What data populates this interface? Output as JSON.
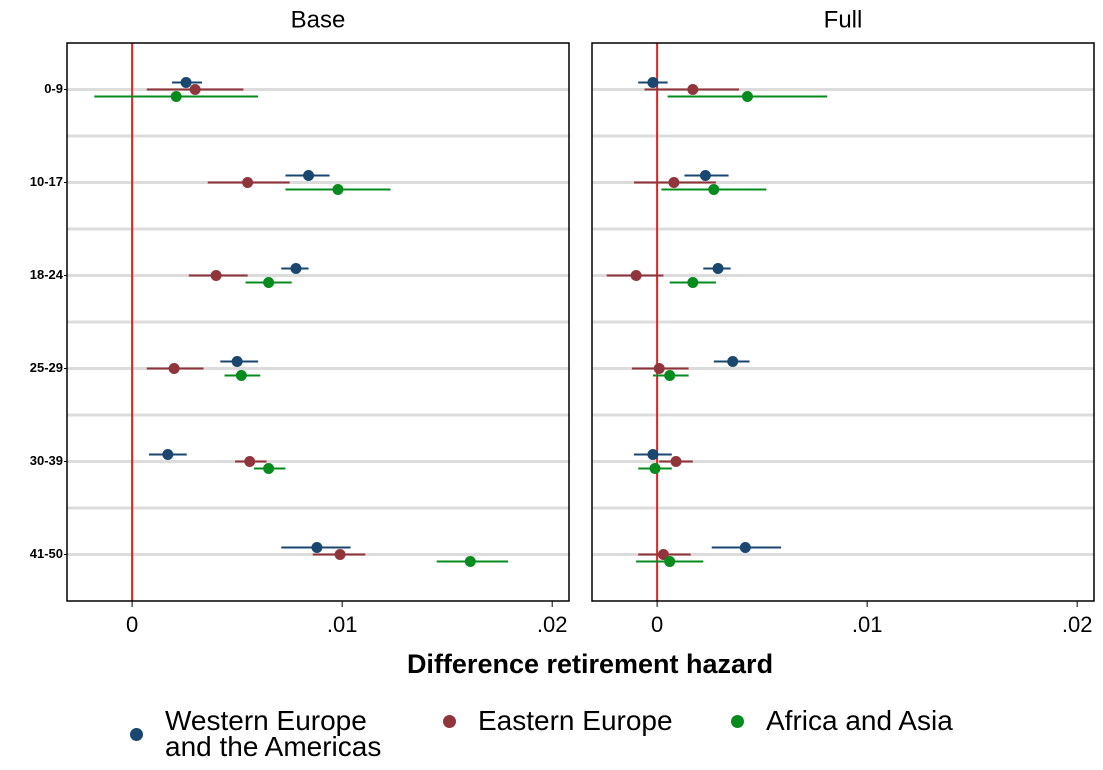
{
  "chart_data": [
    {
      "type": "coefplot",
      "title": "Base",
      "categories": [
        "0-9",
        "10-17",
        "18-24",
        "25-29",
        "30-39",
        "41-50"
      ],
      "xlabel": "Difference retirement hazard",
      "xlim": [
        -0.0031,
        0.0208
      ],
      "xticks": [
        0,
        {
          "value": 0.01,
          "label": ".01"
        },
        {
          "value": 0.02,
          "label": ".02"
        }
      ],
      "refline": 0,
      "refline_color": "#e8201f",
      "grid": true,
      "series": [
        {
          "name": "Western Europe and the Americas",
          "color": "#1a476f",
          "values": [
            0.00257,
            0.0084,
            0.0078,
            0.005,
            0.0017,
            0.0088
          ],
          "lower": [
            0.0019,
            0.0073,
            0.0071,
            0.0042,
            0.0008,
            0.0071
          ],
          "upper": [
            0.00333,
            0.0094,
            0.0084,
            0.006,
            0.0026,
            0.0104
          ]
        },
        {
          "name": "Eastern Europe",
          "color": "#90353b",
          "values": [
            0.003,
            0.0055,
            0.004,
            0.002,
            0.0056,
            0.0099
          ],
          "lower": [
            0.0007,
            0.0036,
            0.0027,
            0.0007,
            0.0049,
            0.0086
          ],
          "upper": [
            0.0053,
            0.0075,
            0.0055,
            0.0034,
            0.0064,
            0.0111
          ]
        },
        {
          "name": "Africa and Asia",
          "color": "#058b1e",
          "values": [
            0.0021,
            0.0098,
            0.0065,
            0.0052,
            0.0065,
            0.0161
          ],
          "lower": [
            -0.0018,
            0.0073,
            0.0054,
            0.0044,
            0.0058,
            0.0145
          ],
          "upper": [
            0.006,
            0.0123,
            0.0076,
            0.0061,
            0.0073,
            0.0179
          ]
        }
      ]
    },
    {
      "type": "coefplot",
      "title": "Full",
      "xlim": [
        -0.0031,
        0.0208
      ],
      "xticks": [
        0,
        {
          "value": 0.01,
          "label": ".01"
        },
        {
          "value": 0.02,
          "label": ".02"
        }
      ],
      "refline": 0,
      "refline_color": "#e8201f",
      "grid": true,
      "series": [
        {
          "color": "#1a476f",
          "values": [
            -0.0002,
            0.0023,
            0.0029,
            0.0036,
            -0.0002,
            0.0042
          ],
          "lower": [
            -0.0009,
            0.0013,
            0.0022,
            0.0027,
            -0.0011,
            0.0026
          ],
          "upper": [
            0.0005,
            0.0034,
            0.0035,
            0.0044,
            0.0007,
            0.0059
          ]
        },
        {
          "color": "#90353b",
          "values": [
            0.0017,
            0.0008,
            -0.001,
            0.0001,
            0.0009,
            0.0003
          ],
          "lower": [
            -0.0006,
            -0.0011,
            -0.0024,
            -0.0012,
            0.0001,
            -0.0009
          ],
          "upper": [
            0.0039,
            0.0028,
            0.0003,
            0.0015,
            0.0017,
            0.0016
          ]
        },
        {
          "color": "#058b1e",
          "values": [
            0.0043,
            0.0027,
            0.0017,
            0.0006,
            -0.0001,
            0.0006
          ],
          "lower": [
            0.0005,
            0.0002,
            0.0006,
            -0.0002,
            -0.0009,
            -0.001
          ],
          "upper": [
            0.0081,
            0.0052,
            0.0028,
            0.0015,
            0.0007,
            0.0022
          ]
        }
      ]
    }
  ]
}
